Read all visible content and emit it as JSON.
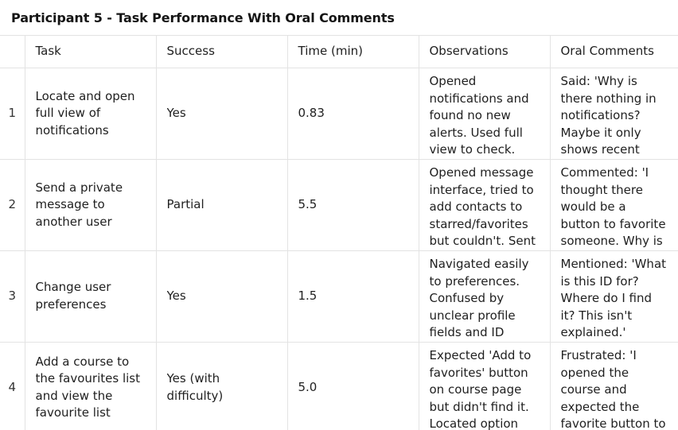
{
  "title": "Participant 5 - Task Performance With Oral Comments",
  "columns": [
    "",
    "Task",
    "Success",
    "Time (min)",
    "Observations",
    "Oral Comments"
  ],
  "rows": [
    {
      "index": "1",
      "task": "Locate and open full view of notifications",
      "success": "Yes",
      "time": "0.83",
      "observations": "Opened notifications and found no new alerts. Used full view to check.",
      "comments": "Said: 'Why is there nothing in notifications? Maybe it only shows recent"
    },
    {
      "index": "2",
      "task": "Send a private message to another user",
      "success": "Partial",
      "time": "5.5",
      "observations": "Opened message interface, tried to add contacts to starred/favorites but couldn't. Sent",
      "comments": "Commented: 'I thought there would be a button to favorite someone. Why is"
    },
    {
      "index": "3",
      "task": "Change user preferences",
      "success": "Yes",
      "time": "1.5",
      "observations": "Navigated easily to preferences. Confused by unclear profile fields and ID",
      "comments": "Mentioned: 'What is this ID for? Where do I find it? This isn't explained.'"
    },
    {
      "index": "4",
      "task": "Add a course to the favourites list and view the favourite list",
      "success": "Yes (with difficulty)",
      "time": "5.0",
      "observations": "Expected 'Add to favorites' button on course page but didn't find it. Located option",
      "comments": "Frustrated: 'I opened the course and expected the favorite button to"
    }
  ]
}
